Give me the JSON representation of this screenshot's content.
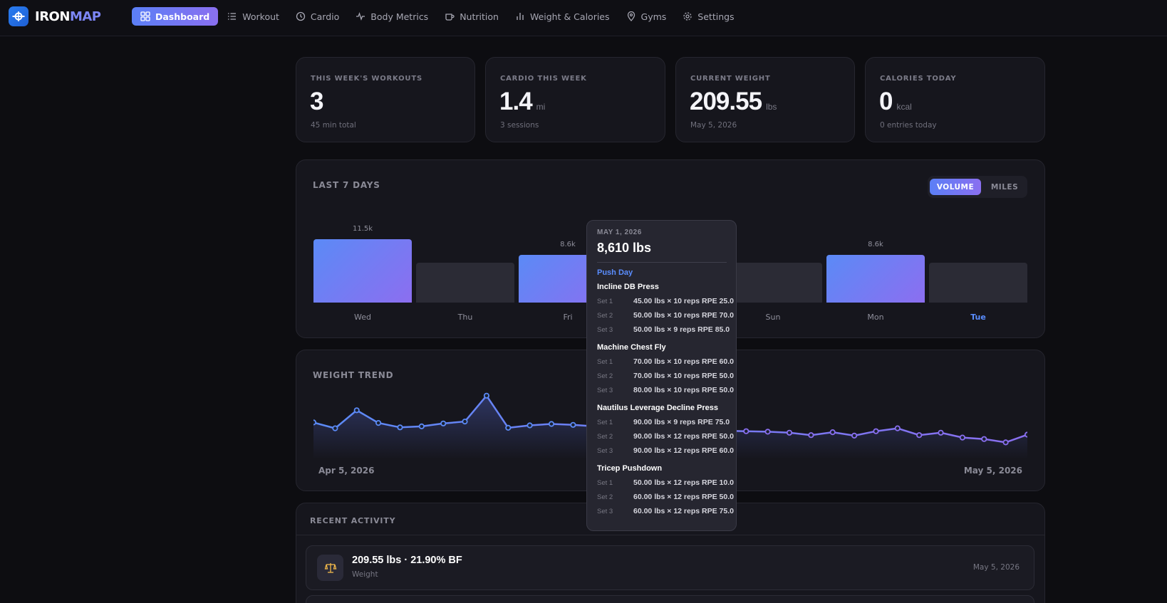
{
  "app": {
    "logo_part1": "IRON",
    "logo_part2": "MAP",
    "accent": "#5b7ff6",
    "accent2": "#8a6ff0"
  },
  "nav": [
    {
      "label": "Dashboard",
      "icon": "grid-icon",
      "active": true
    },
    {
      "label": "Workout",
      "icon": "list-icon"
    },
    {
      "label": "Cardio",
      "icon": "clock-icon"
    },
    {
      "label": "Body Metrics",
      "icon": "pulse-icon"
    },
    {
      "label": "Nutrition",
      "icon": "cup-icon"
    },
    {
      "label": "Weight & Calories",
      "icon": "bar-chart-icon"
    },
    {
      "label": "Gyms",
      "icon": "location-pin-icon"
    },
    {
      "label": "Settings",
      "icon": "gear-icon"
    }
  ],
  "stats": [
    {
      "label": "THIS WEEK'S WORKOUTS",
      "value": "3",
      "unit": "",
      "sub": "45 min total"
    },
    {
      "label": "CARDIO THIS WEEK",
      "value": "1.4",
      "unit": "mi",
      "sub": "3 sessions"
    },
    {
      "label": "CURRENT WEIGHT",
      "value": "209.55",
      "unit": "lbs",
      "sub": "May 5, 2026"
    },
    {
      "label": "CALORIES TODAY",
      "value": "0",
      "unit": "kcal",
      "sub": "0 entries today"
    }
  ],
  "last7": {
    "title": "LAST 7 DAYS",
    "toggle": {
      "volume": "VOLUME",
      "miles": "MILES",
      "selected": "VOLUME"
    },
    "chart_data": {
      "type": "bar",
      "categories": [
        "Wed",
        "Thu",
        "Fri",
        "Sat",
        "Sun",
        "Mon",
        "Tue"
      ],
      "values": [
        11500,
        0,
        8610,
        0,
        0,
        8600,
        0
      ],
      "data_labels": [
        "11.5k",
        "",
        "8.6k",
        "",
        "",
        "8.6k",
        ""
      ],
      "highlighted_category": "Tue"
    }
  },
  "tooltip": {
    "date": "MAY 1, 2026",
    "total": "8,610 lbs",
    "workout": "Push Day",
    "exercises": [
      {
        "name": "Incline DB Press",
        "sets": [
          {
            "set": "Set 1",
            "value": "45.00 lbs × 10 reps RPE 25.0"
          },
          {
            "set": "Set 2",
            "value": "50.00 lbs × 10 reps RPE 70.0"
          },
          {
            "set": "Set 3",
            "value": "50.00 lbs × 9 reps RPE 85.0"
          }
        ]
      },
      {
        "name": "Machine Chest Fly",
        "sets": [
          {
            "set": "Set 1",
            "value": "70.00 lbs × 10 reps RPE 60.0"
          },
          {
            "set": "Set 2",
            "value": "70.00 lbs × 10 reps RPE 50.0"
          },
          {
            "set": "Set 3",
            "value": "80.00 lbs × 10 reps RPE 50.0"
          }
        ]
      },
      {
        "name": "Nautilus Leverage Decline Press",
        "sets": [
          {
            "set": "Set 1",
            "value": "90.00 lbs × 9 reps RPE 75.0"
          },
          {
            "set": "Set 2",
            "value": "90.00 lbs × 12 reps RPE 50.0"
          },
          {
            "set": "Set 3",
            "value": "90.00 lbs × 12 reps RPE 60.0"
          }
        ]
      },
      {
        "name": "Tricep Pushdown",
        "sets": [
          {
            "set": "Set 1",
            "value": "50.00 lbs × 12 reps RPE 10.0"
          },
          {
            "set": "Set 2",
            "value": "60.00 lbs × 12 reps RPE 50.0"
          },
          {
            "set": "Set 3",
            "value": "60.00 lbs × 12 reps RPE 75.0"
          }
        ]
      }
    ]
  },
  "weight_trend": {
    "title": "WEIGHT TREND",
    "start_label": "Apr 5, 2026",
    "end_label": "May 5, 2026",
    "chart_data": {
      "type": "area",
      "values": [
        212.0,
        210.8,
        214.5,
        211.9,
        211.0,
        211.2,
        211.8,
        212.2,
        217.5,
        210.9,
        211.4,
        211.7,
        211.5,
        211.2,
        211.0,
        210.8,
        210.6,
        210.5,
        210.4,
        210.3,
        210.2,
        210.1,
        209.9,
        209.4,
        210.0,
        209.3,
        210.2,
        210.8,
        209.4,
        209.9,
        208.9,
        208.6,
        207.9,
        209.5
      ]
    }
  },
  "recent_activity": {
    "title": "RECENT ACTIVITY",
    "items": [
      {
        "title": "209.55 lbs · 21.90% BF",
        "sub": "Weight",
        "date": "May 5, 2026",
        "icon": "scale-icon"
      }
    ]
  }
}
